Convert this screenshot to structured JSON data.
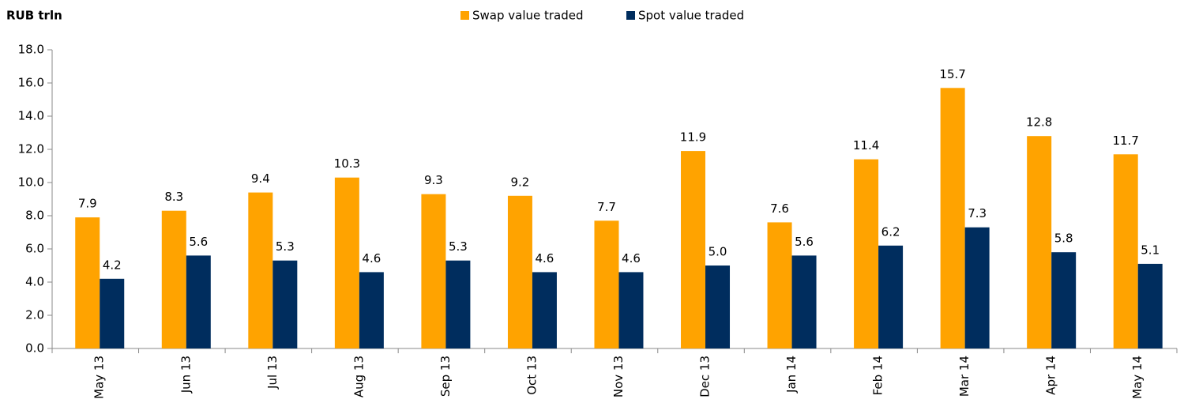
{
  "chart_data": {
    "type": "bar",
    "y_axis_label": "RUB trln",
    "categories": [
      "May 13",
      "Jun 13",
      "Jul 13",
      "Aug 13",
      "Sep 13",
      "Oct 13",
      "Nov 13",
      "Dec 13",
      "Jan 14",
      "Feb 14",
      "Mar 14",
      "Apr 14",
      "May 14"
    ],
    "series": [
      {
        "name": "Swap value traded",
        "color": "#ffa300",
        "values": [
          7.9,
          8.3,
          9.4,
          10.3,
          9.3,
          9.2,
          7.7,
          11.9,
          7.6,
          11.4,
          15.7,
          12.8,
          11.7
        ],
        "value_labels": [
          "7.9",
          "8.3",
          "9.4",
          "10.3",
          "9.3",
          "9.2",
          "7.7",
          "11.9",
          "7.6",
          "11.4",
          "15.7",
          "12.8",
          "11.7"
        ]
      },
      {
        "name": "Spot value traded",
        "color": "#002d5e",
        "values": [
          4.2,
          5.6,
          5.3,
          4.6,
          5.3,
          4.6,
          4.6,
          5.0,
          5.6,
          6.2,
          7.3,
          5.8,
          5.1
        ],
        "value_labels": [
          "4.2",
          "5.6",
          "5.3",
          "4.6",
          "5.3",
          "4.6",
          "4.6",
          "5.0",
          "5.6",
          "6.2",
          "7.3",
          "5.8",
          "5.1"
        ]
      }
    ],
    "ylim": [
      0,
      18
    ],
    "yticks": [
      {
        "value": 0,
        "label": "0.0"
      },
      {
        "value": 2,
        "label": "2.0"
      },
      {
        "value": 4,
        "label": "4.0"
      },
      {
        "value": 6,
        "label": "6.0"
      },
      {
        "value": 8,
        "label": "8.0"
      },
      {
        "value": 10,
        "label": "10.0"
      },
      {
        "value": 12,
        "label": "12.0"
      },
      {
        "value": 14,
        "label": "14.0"
      },
      {
        "value": 16,
        "label": "16.0"
      },
      {
        "value": 18,
        "label": "18.0"
      }
    ],
    "legend": "top",
    "grid": false
  }
}
